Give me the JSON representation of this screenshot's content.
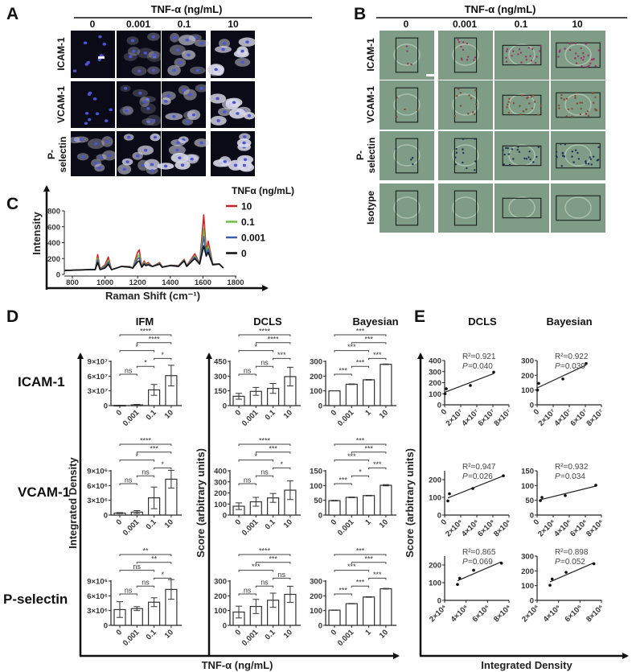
{
  "panel_letters": {
    "a": "A",
    "b": "B",
    "c": "C",
    "d": "D",
    "e": "E"
  },
  "panel_a": {
    "header": "TNF-α (ng/mL)",
    "columns": [
      "0",
      "0.001",
      "0.1",
      "10"
    ],
    "rows": [
      [
        "ICAM-1"
      ],
      [
        "VCAM-1"
      ],
      [
        "P-",
        "selectin"
      ]
    ]
  },
  "panel_b": {
    "header": "TNF-α (ng/mL)",
    "columns": [
      "0",
      "0.001",
      "0.1",
      "10"
    ],
    "rows": [
      [
        "ICAM-1"
      ],
      [
        "VCAM-1"
      ],
      [
        "P-",
        "selectin"
      ],
      [
        "Isotype"
      ]
    ]
  },
  "panel_d": {
    "titles": [
      "IFM",
      "DCLS",
      "Bayesian"
    ],
    "rows": [
      "ICAM-1",
      "VCAM-1",
      "P-selectin"
    ],
    "ylabel_left": "Integrated Density",
    "ylabel_right": "Score (arbitrary units)",
    "xlabel": "TNF-α (ng/mL)"
  },
  "panel_e": {
    "titles": [
      "DCLS",
      "Bayesian"
    ],
    "ylabel": "Score (arbitrary units)",
    "xlabel": "Integrated Density"
  },
  "chart_data": [
    {
      "type": "line",
      "panel": "C",
      "xlabel": "Raman Shift (cm⁻¹)",
      "ylabel": "Intensity",
      "xlim": [
        750,
        1800
      ],
      "ylim": [
        0,
        800
      ],
      "xticks": [
        800,
        1000,
        1200,
        1400,
        1600,
        1800
      ],
      "xtick_labels": [
        "800",
        "1000",
        "1200",
        "1400",
        "1600",
        "1800"
      ],
      "yticks": [
        0,
        200,
        400,
        600,
        800
      ],
      "ytick_labels": [
        "0",
        "200",
        "400",
        "600",
        "800"
      ],
      "legend_title": "TNFα (ng/mL)",
      "legend_position": "top-right",
      "x": [
        750,
        900,
        940,
        955,
        970,
        1000,
        1020,
        1040,
        1100,
        1150,
        1170,
        1200,
        1210,
        1225,
        1240,
        1250,
        1265,
        1290,
        1335,
        1350,
        1400,
        1450,
        1485,
        1500,
        1550,
        1580,
        1605,
        1620,
        1632,
        1660,
        1700,
        1725
      ],
      "series": [
        {
          "name": "10",
          "color": "#cc2222",
          "y": [
            50,
            60,
            60,
            250,
            70,
            120,
            220,
            60,
            100,
            100,
            80,
            280,
            310,
            100,
            170,
            130,
            150,
            100,
            150,
            95,
            115,
            110,
            190,
            110,
            260,
            140,
            750,
            300,
            420,
            130,
            135,
            80
          ]
        },
        {
          "name": "0.1",
          "color": "#6cbf3c",
          "y": [
            50,
            60,
            60,
            205,
            66,
            102,
            180,
            60,
            100,
            96,
            80,
            226,
            247,
            96,
            152,
            121,
            137,
            100,
            141,
            93,
            113,
            106,
            181,
            106,
            233,
            136,
            575,
            269,
            357,
            126,
            133,
            80
          ]
        },
        {
          "name": "0.001",
          "color": "#3a5fb0",
          "y": [
            50,
            60,
            60,
            180,
            63,
            92,
            157,
            60,
            100,
            93,
            80,
            196,
            212,
            93,
            142,
            116,
            129,
            100,
            136,
            92,
            112,
            103,
            176,
            103,
            218,
            133,
            477,
            251,
            322,
            123,
            132,
            80
          ]
        },
        {
          "name": "0",
          "color": "#111111",
          "y": [
            50,
            60,
            60,
            150,
            60,
            80,
            130,
            60,
            100,
            90,
            80,
            160,
            170,
            90,
            130,
            110,
            120,
            100,
            130,
            90,
            110,
            100,
            170,
            100,
            200,
            130,
            360,
            230,
            280,
            120,
            130,
            80
          ]
        }
      ]
    },
    {
      "type": "bar",
      "panel": "D",
      "row": "ICAM-1",
      "title": "IFM",
      "categories": [
        "0",
        "0.001",
        "0.1",
        "10"
      ],
      "values": [
        500000.0,
        1500000.0,
        32000000.0,
        61000000.0
      ],
      "errors": [
        300000.0,
        1000000.0,
        11000000.0,
        21000000.0
      ],
      "yticks": [
        0,
        30000000.0,
        60000000.0,
        90000000.0
      ],
      "ytick_labels": [
        "0",
        "3×10⁷",
        "6×10⁷",
        "9×10⁷"
      ],
      "brackets": [
        {
          "from": 0,
          "to": 1,
          "label": "ns"
        },
        {
          "from": 1,
          "to": 2,
          "label": "*"
        },
        {
          "from": 2,
          "to": 3,
          "label": "*"
        },
        {
          "from": 0,
          "to": 2,
          "label": "*"
        },
        {
          "from": 1,
          "to": 3,
          "label": "****"
        },
        {
          "from": 0,
          "to": 3,
          "label": "****"
        }
      ]
    },
    {
      "type": "bar",
      "panel": "D",
      "row": "ICAM-1",
      "title": "DCLS",
      "categories": [
        "0",
        "0.001",
        "0.1",
        "10"
      ],
      "values": [
        95,
        145,
        175,
        295
      ],
      "errors": [
        30,
        40,
        50,
        95
      ],
      "yticks": [
        0,
        150,
        300,
        450
      ],
      "ytick_labels": [
        "0",
        "150",
        "300",
        "450"
      ],
      "brackets": [
        {
          "from": 0,
          "to": 1,
          "label": "ns"
        },
        {
          "from": 1,
          "to": 2,
          "label": "ns"
        },
        {
          "from": 2,
          "to": 3,
          "label": "***"
        },
        {
          "from": 0,
          "to": 2,
          "label": "*"
        },
        {
          "from": 1,
          "to": 3,
          "label": "****"
        },
        {
          "from": 0,
          "to": 3,
          "label": "****"
        }
      ]
    },
    {
      "type": "bar",
      "panel": "D",
      "row": "ICAM-1",
      "title": "Bayesian",
      "categories": [
        "0",
        "0.001",
        "1",
        "10"
      ],
      "values": [
        100,
        145,
        175,
        280
      ],
      "errors": [
        0,
        2,
        2,
        2
      ],
      "yticks": [
        0,
        100,
        200,
        300
      ],
      "ytick_labels": [
        "0",
        "100",
        "200",
        "300"
      ],
      "brackets": [
        {
          "from": 0,
          "to": 1,
          "label": "***"
        },
        {
          "from": 1,
          "to": 2,
          "label": "***"
        },
        {
          "from": 2,
          "to": 3,
          "label": "***"
        },
        {
          "from": 0,
          "to": 2,
          "label": "***"
        },
        {
          "from": 1,
          "to": 3,
          "label": "***"
        },
        {
          "from": 0,
          "to": 3,
          "label": "***"
        }
      ]
    },
    {
      "type": "bar",
      "panel": "D",
      "row": "VCAM-1",
      "title": "IFM",
      "categories": [
        "0",
        "0.001",
        "0.1",
        "10"
      ],
      "values": [
        400000.0,
        600000.0,
        3500000.0,
        7300000.0
      ],
      "errors": [
        100000.0,
        300000.0,
        2200000.0,
        1800000.0
      ],
      "yticks": [
        0,
        3000000.0,
        6000000.0,
        9000000.0
      ],
      "ytick_labels": [
        "0",
        "3×10⁶",
        "6×10⁶",
        "9×10⁶"
      ],
      "brackets": [
        {
          "from": 0,
          "to": 1,
          "label": "ns"
        },
        {
          "from": 1,
          "to": 2,
          "label": "ns"
        },
        {
          "from": 2,
          "to": 3,
          "label": "*"
        },
        {
          "from": 0,
          "to": 2,
          "label": "*"
        },
        {
          "from": 1,
          "to": 3,
          "label": "***"
        },
        {
          "from": 0,
          "to": 3,
          "label": "****"
        }
      ]
    },
    {
      "type": "bar",
      "panel": "D",
      "row": "VCAM-1",
      "title": "DCLS",
      "categories": [
        "0",
        "0.001",
        "0.1",
        "10"
      ],
      "values": [
        80,
        120,
        155,
        225
      ],
      "errors": [
        30,
        40,
        40,
        85
      ],
      "yticks": [
        0,
        100,
        200,
        300,
        400
      ],
      "ytick_labels": [
        "0",
        "100",
        "200",
        "300",
        "400"
      ],
      "brackets": [
        {
          "from": 0,
          "to": 1,
          "label": "ns"
        },
        {
          "from": 1,
          "to": 2,
          "label": "ns"
        },
        {
          "from": 2,
          "to": 3,
          "label": "*"
        },
        {
          "from": 0,
          "to": 2,
          "label": "*"
        },
        {
          "from": 1,
          "to": 3,
          "label": "***"
        },
        {
          "from": 0,
          "to": 3,
          "label": "****"
        }
      ]
    },
    {
      "type": "bar",
      "panel": "D",
      "row": "VCAM-1",
      "title": "Bayesian",
      "categories": [
        "0",
        "0.001",
        "1",
        "10"
      ],
      "values": [
        49,
        60,
        66,
        101
      ],
      "errors": [
        1,
        1,
        1,
        2
      ],
      "yticks": [
        0,
        50,
        100,
        150
      ],
      "ytick_labels": [
        "0",
        "50",
        "100",
        "150"
      ],
      "brackets": [
        {
          "from": 0,
          "to": 1,
          "label": "***"
        },
        {
          "from": 1,
          "to": 2,
          "label": "*"
        },
        {
          "from": 2,
          "to": 3,
          "label": "***"
        },
        {
          "from": 0,
          "to": 2,
          "label": "***"
        },
        {
          "from": 1,
          "to": 3,
          "label": "***"
        },
        {
          "from": 0,
          "to": 3,
          "label": "***"
        }
      ]
    },
    {
      "type": "bar",
      "panel": "D",
      "row": "P-selectin",
      "title": "IFM",
      "categories": [
        "0",
        "0.001",
        "0.1",
        "10"
      ],
      "values": [
        3200000.0,
        3400000.0,
        4700000.0,
        7300000.0
      ],
      "errors": [
        1600000.0,
        400000.0,
        900000.0,
        2000000.0
      ],
      "yticks": [
        0,
        3000000.0,
        6000000.0,
        9000000.0
      ],
      "ytick_labels": [
        "0",
        "3×10⁶",
        "6×10⁶",
        "9×10⁶"
      ],
      "brackets": [
        {
          "from": 0,
          "to": 1,
          "label": "ns"
        },
        {
          "from": 1,
          "to": 2,
          "label": "ns"
        },
        {
          "from": 2,
          "to": 3,
          "label": "*"
        },
        {
          "from": 0,
          "to": 2,
          "label": "ns"
        },
        {
          "from": 1,
          "to": 3,
          "label": "**"
        },
        {
          "from": 0,
          "to": 3,
          "label": "**"
        }
      ]
    },
    {
      "type": "bar",
      "panel": "D",
      "row": "P-selectin",
      "title": "DCLS",
      "categories": [
        "0",
        "0.001",
        "0.1",
        "10"
      ],
      "values": [
        90,
        128,
        170,
        210
      ],
      "errors": [
        40,
        48,
        48,
        55
      ],
      "yticks": [
        0,
        100,
        200,
        300
      ],
      "ytick_labels": [
        "0",
        "100",
        "200",
        "300"
      ],
      "brackets": [
        {
          "from": 0,
          "to": 1,
          "label": "ns"
        },
        {
          "from": 1,
          "to": 2,
          "label": "ns"
        },
        {
          "from": 2,
          "to": 3,
          "label": "ns"
        },
        {
          "from": 0,
          "to": 2,
          "label": "***"
        },
        {
          "from": 1,
          "to": 3,
          "label": "***"
        },
        {
          "from": 0,
          "to": 3,
          "label": "****"
        }
      ]
    },
    {
      "type": "bar",
      "panel": "D",
      "row": "P-selectin",
      "title": "Bayesian",
      "categories": [
        "0",
        "0.001",
        "1",
        "10"
      ],
      "values": [
        103,
        147,
        192,
        248
      ],
      "errors": [
        1,
        1,
        2,
        2
      ],
      "yticks": [
        0,
        100,
        200,
        300
      ],
      "ytick_labels": [
        "0",
        "100",
        "200",
        "300"
      ],
      "brackets": [
        {
          "from": 0,
          "to": 1,
          "label": "***"
        },
        {
          "from": 1,
          "to": 2,
          "label": "***"
        },
        {
          "from": 2,
          "to": 3,
          "label": "***"
        },
        {
          "from": 0,
          "to": 2,
          "label": "***"
        },
        {
          "from": 1,
          "to": 3,
          "label": "***"
        },
        {
          "from": 0,
          "to": 3,
          "label": "***"
        }
      ]
    },
    {
      "type": "scatter",
      "panel": "E",
      "row": "ICAM-1",
      "title": "DCLS",
      "x": [
        500000.0,
        2000000.0,
        32000000.0,
        61000000.0
      ],
      "y": [
        100,
        145,
        175,
        295
      ],
      "xlim": [
        0,
        80000000.0
      ],
      "ylim": [
        0,
        400
      ],
      "xticks": [
        0,
        20000000.0,
        40000000.0,
        60000000.0,
        80000000.0
      ],
      "xtick_labels": [
        "0",
        "2×10⁷",
        "4×10⁷",
        "6×10⁷",
        "8×10⁷"
      ],
      "yticks": [
        0,
        100,
        200,
        300,
        400
      ],
      "ytick_labels": [
        "0",
        "100",
        "200",
        "300",
        "400"
      ],
      "r2": "R²=0.921",
      "p_symbol": "P",
      "p": " =0.040",
      "fit": "linear"
    },
    {
      "type": "scatter",
      "panel": "E",
      "row": "ICAM-1",
      "title": "Bayesian",
      "x": [
        500000.0,
        2000000.0,
        32000000.0,
        61000000.0
      ],
      "y": [
        100,
        145,
        175,
        280
      ],
      "xlim": [
        0,
        80000000.0
      ],
      "ylim": [
        0,
        300
      ],
      "xticks": [
        0,
        20000000.0,
        40000000.0,
        60000000.0,
        80000000.0
      ],
      "xtick_labels": [
        "0",
        "2×10⁷",
        "4×10⁷",
        "6×10⁷",
        "8×10⁷"
      ],
      "yticks": [
        0,
        100,
        200,
        300
      ],
      "ytick_labels": [
        "0",
        "100",
        "200",
        "300"
      ],
      "r2": "R²=0.922",
      "p_symbol": "P",
      "p": " =0.039",
      "fit": "linear"
    },
    {
      "type": "scatter",
      "panel": "E",
      "row": "VCAM-1",
      "title": "DCLS",
      "x": [
        400000.0,
        600000.0,
        3500000.0,
        7300000.0
      ],
      "y": [
        80,
        120,
        150,
        222
      ],
      "xlim": [
        0,
        8000000.0
      ],
      "ylim": [
        0,
        250
      ],
      "xticks": [
        0,
        2000000.0,
        4000000.0,
        6000000.0,
        8000000.0
      ],
      "xtick_labels": [
        "0",
        "2×10⁶",
        "4×10⁶",
        "6×10⁶",
        "8×10⁶"
      ],
      "yticks": [
        0,
        100,
        200
      ],
      "ytick_labels": [
        "0",
        "100",
        "200"
      ],
      "r2": "R²=0.947",
      "p_symbol": "P",
      "p": " =0.026",
      "fit": "linear"
    },
    {
      "type": "scatter",
      "panel": "E",
      "row": "VCAM-1",
      "title": "Bayesian",
      "x": [
        400000.0,
        600000.0,
        3500000.0,
        7300000.0
      ],
      "y": [
        49,
        60,
        66,
        101
      ],
      "xlim": [
        0,
        8000000.0
      ],
      "ylim": [
        0,
        150
      ],
      "xticks": [
        0,
        2000000.0,
        4000000.0,
        6000000.0,
        8000000.0
      ],
      "xtick_labels": [
        "0",
        "2×10⁶",
        "4×10⁶",
        "6×10⁶",
        "8×10⁶"
      ],
      "yticks": [
        0,
        50,
        100,
        150
      ],
      "ytick_labels": [
        "0",
        "50",
        "100",
        "150"
      ],
      "r2": "R²=0.932",
      "p_symbol": "P",
      "p": " =0.034",
      "fit": "linear"
    },
    {
      "type": "scatter",
      "panel": "E",
      "row": "P-selectin",
      "title": "DCLS",
      "x": [
        3200000.0,
        3400000.0,
        4700000.0,
        7300000.0
      ],
      "y": [
        90,
        125,
        170,
        210
      ],
      "xlim": [
        2000000.0,
        8000000.0
      ],
      "ylim": [
        0,
        250
      ],
      "xticks": [
        2000000.0,
        4000000.0,
        6000000.0,
        8000000.0
      ],
      "xtick_labels": [
        "2×10⁶",
        "4×10⁶",
        "6×10⁶",
        "8×10⁶"
      ],
      "yticks": [
        0,
        100,
        200
      ],
      "ytick_labels": [
        "0",
        "100",
        "200"
      ],
      "r2": "R²=0.865",
      "p_symbol": "P",
      "p": " =0.069",
      "fit": "linear"
    },
    {
      "type": "scatter",
      "panel": "E",
      "row": "P-selectin",
      "title": "Bayesian",
      "x": [
        3200000.0,
        3400000.0,
        4700000.0,
        7300000.0
      ],
      "y": [
        103,
        145,
        190,
        248
      ],
      "xlim": [
        2000000.0,
        8000000.0
      ],
      "ylim": [
        0,
        300
      ],
      "xticks": [
        2000000.0,
        4000000.0,
        6000000.0,
        8000000.0
      ],
      "xtick_labels": [
        "2×10⁶",
        "4×10⁶",
        "6×10⁶",
        "8×10⁶"
      ],
      "yticks": [
        0,
        100,
        200,
        300
      ],
      "ytick_labels": [
        "0",
        "100",
        "200",
        "300"
      ],
      "r2": "R²=0.898",
      "p_symbol": "P",
      "p": " =0.052",
      "fit": "linear"
    }
  ]
}
